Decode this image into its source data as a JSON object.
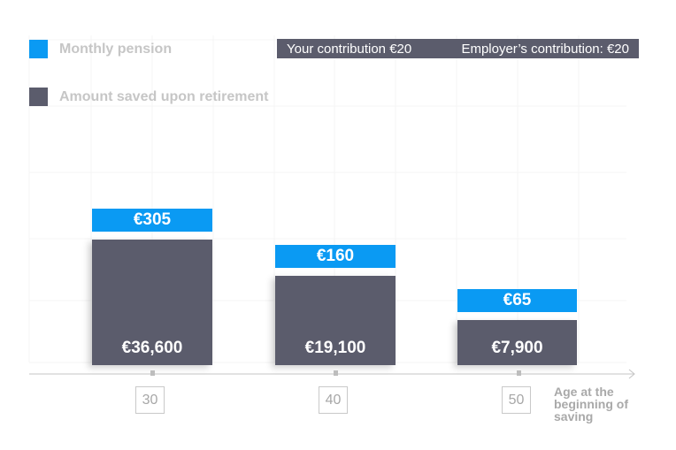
{
  "legend": {
    "monthly_pension": {
      "label": "Monthly pension",
      "color": "#0a9af3"
    },
    "amount_saved": {
      "label": "Amount saved upon retirement",
      "color": "#5b5c6c"
    }
  },
  "contribution": {
    "yours": "Your contribution €20",
    "employer": "Employer’s contribution: €20"
  },
  "chart_data": {
    "type": "bar",
    "categories": [
      "30",
      "40",
      "50"
    ],
    "series": [
      {
        "name": "Monthly pension",
        "values": [
          305,
          160,
          65
        ],
        "labels": [
          "€305",
          "€160",
          "€65"
        ]
      },
      {
        "name": "Amount saved upon retirement",
        "values": [
          36600,
          19100,
          7900
        ],
        "labels": [
          "€36,600",
          "€19,100",
          "€7,900"
        ]
      }
    ],
    "xlabel": "Age at the beginning of saving",
    "ylabel": "",
    "grid": true
  }
}
